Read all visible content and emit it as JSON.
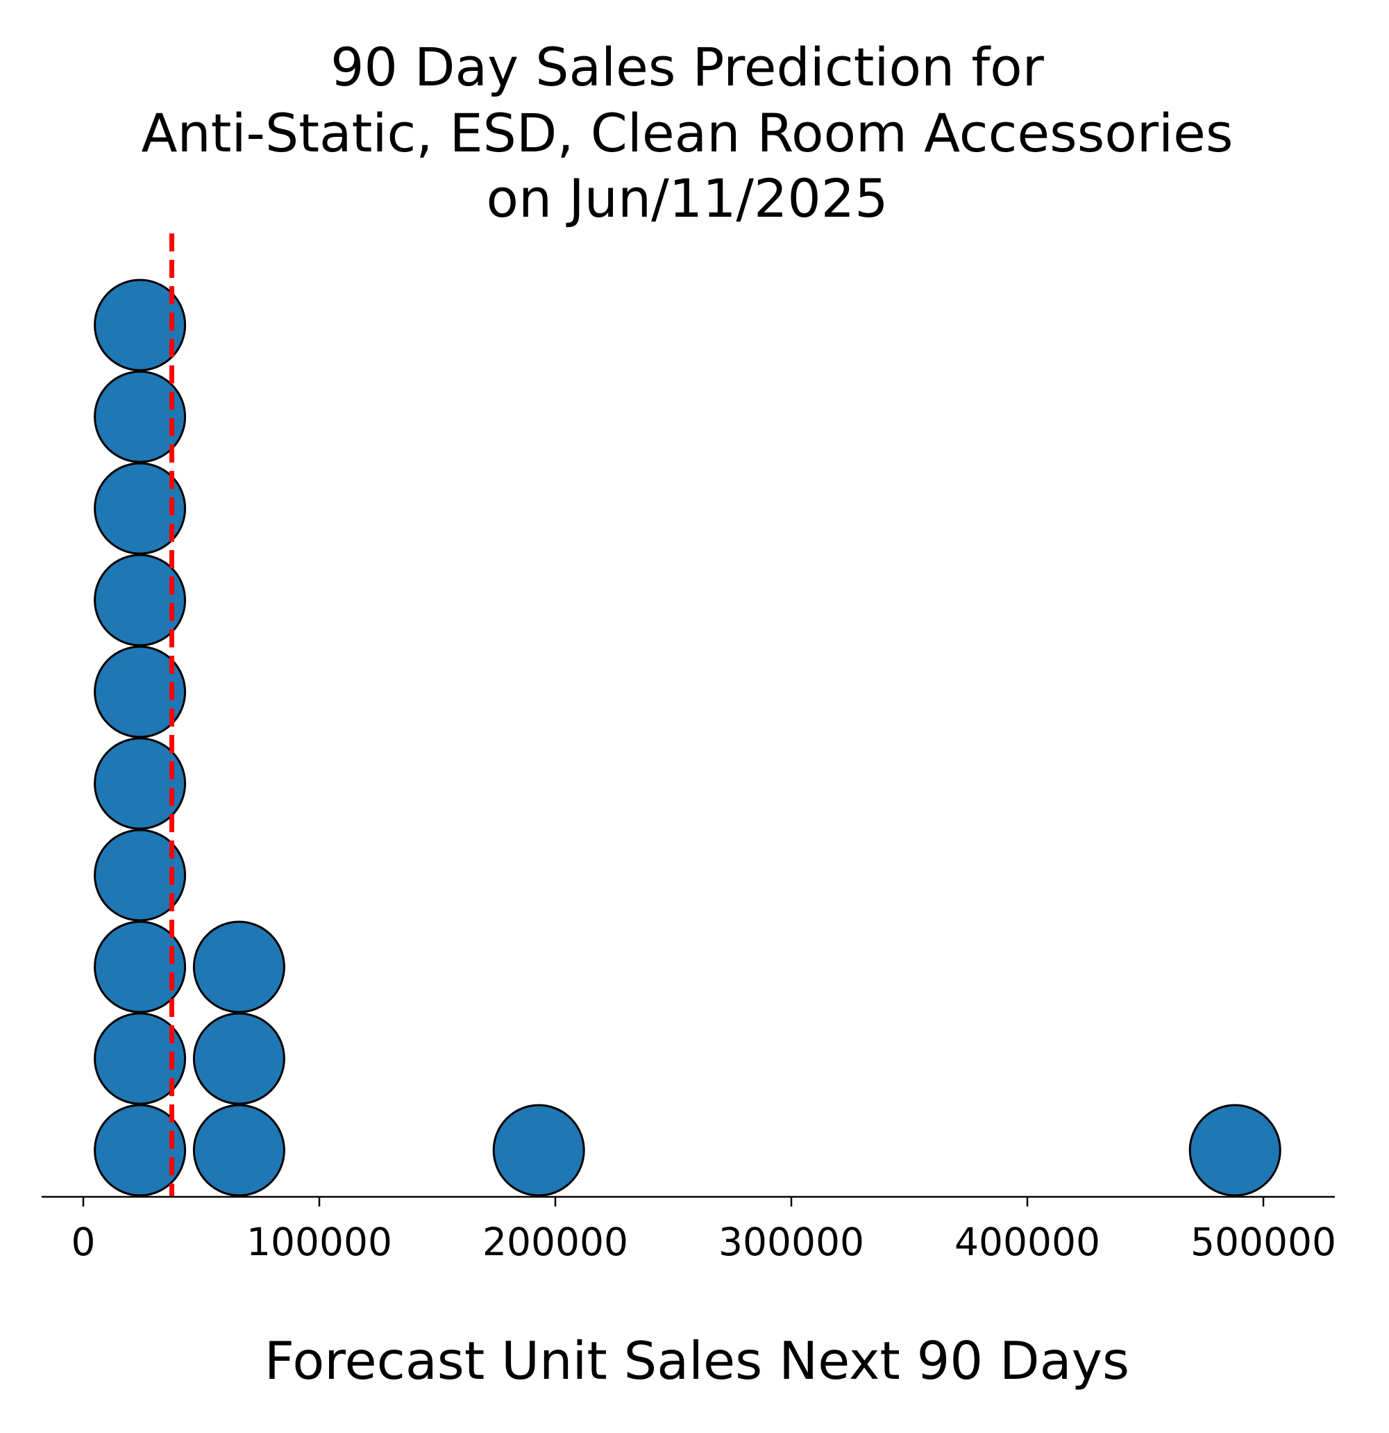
{
  "chart_data": {
    "type": "scatter",
    "subtype": "dot-plot",
    "title_lines": [
      "90 Day Sales Prediction for",
      "Anti-Static, ESD, Clean Room Accessories",
      "on Jun/11/2025"
    ],
    "xlabel": "Forecast Unit Sales Next 90 Days",
    "ylabel": "",
    "xlim": [
      -18000,
      530000
    ],
    "xticks": [
      0,
      100000,
      200000,
      300000,
      400000,
      500000
    ],
    "xtick_labels": [
      "0",
      "100000",
      "200000",
      "300000",
      "400000",
      "500000"
    ],
    "y_axis_visible": false,
    "grid": false,
    "legend": "none",
    "reference_line": {
      "x": 37500,
      "style": "dashed",
      "color": "#ff0000"
    },
    "stacks": [
      {
        "x": 24000,
        "count": 10
      },
      {
        "x": 66000,
        "count": 3
      },
      {
        "x": 193000,
        "count": 1
      },
      {
        "x": 488000,
        "count": 1
      }
    ],
    "colors": {
      "point_fill": "#1f77b4",
      "point_edge": "#000000",
      "axis": "#000000"
    }
  }
}
